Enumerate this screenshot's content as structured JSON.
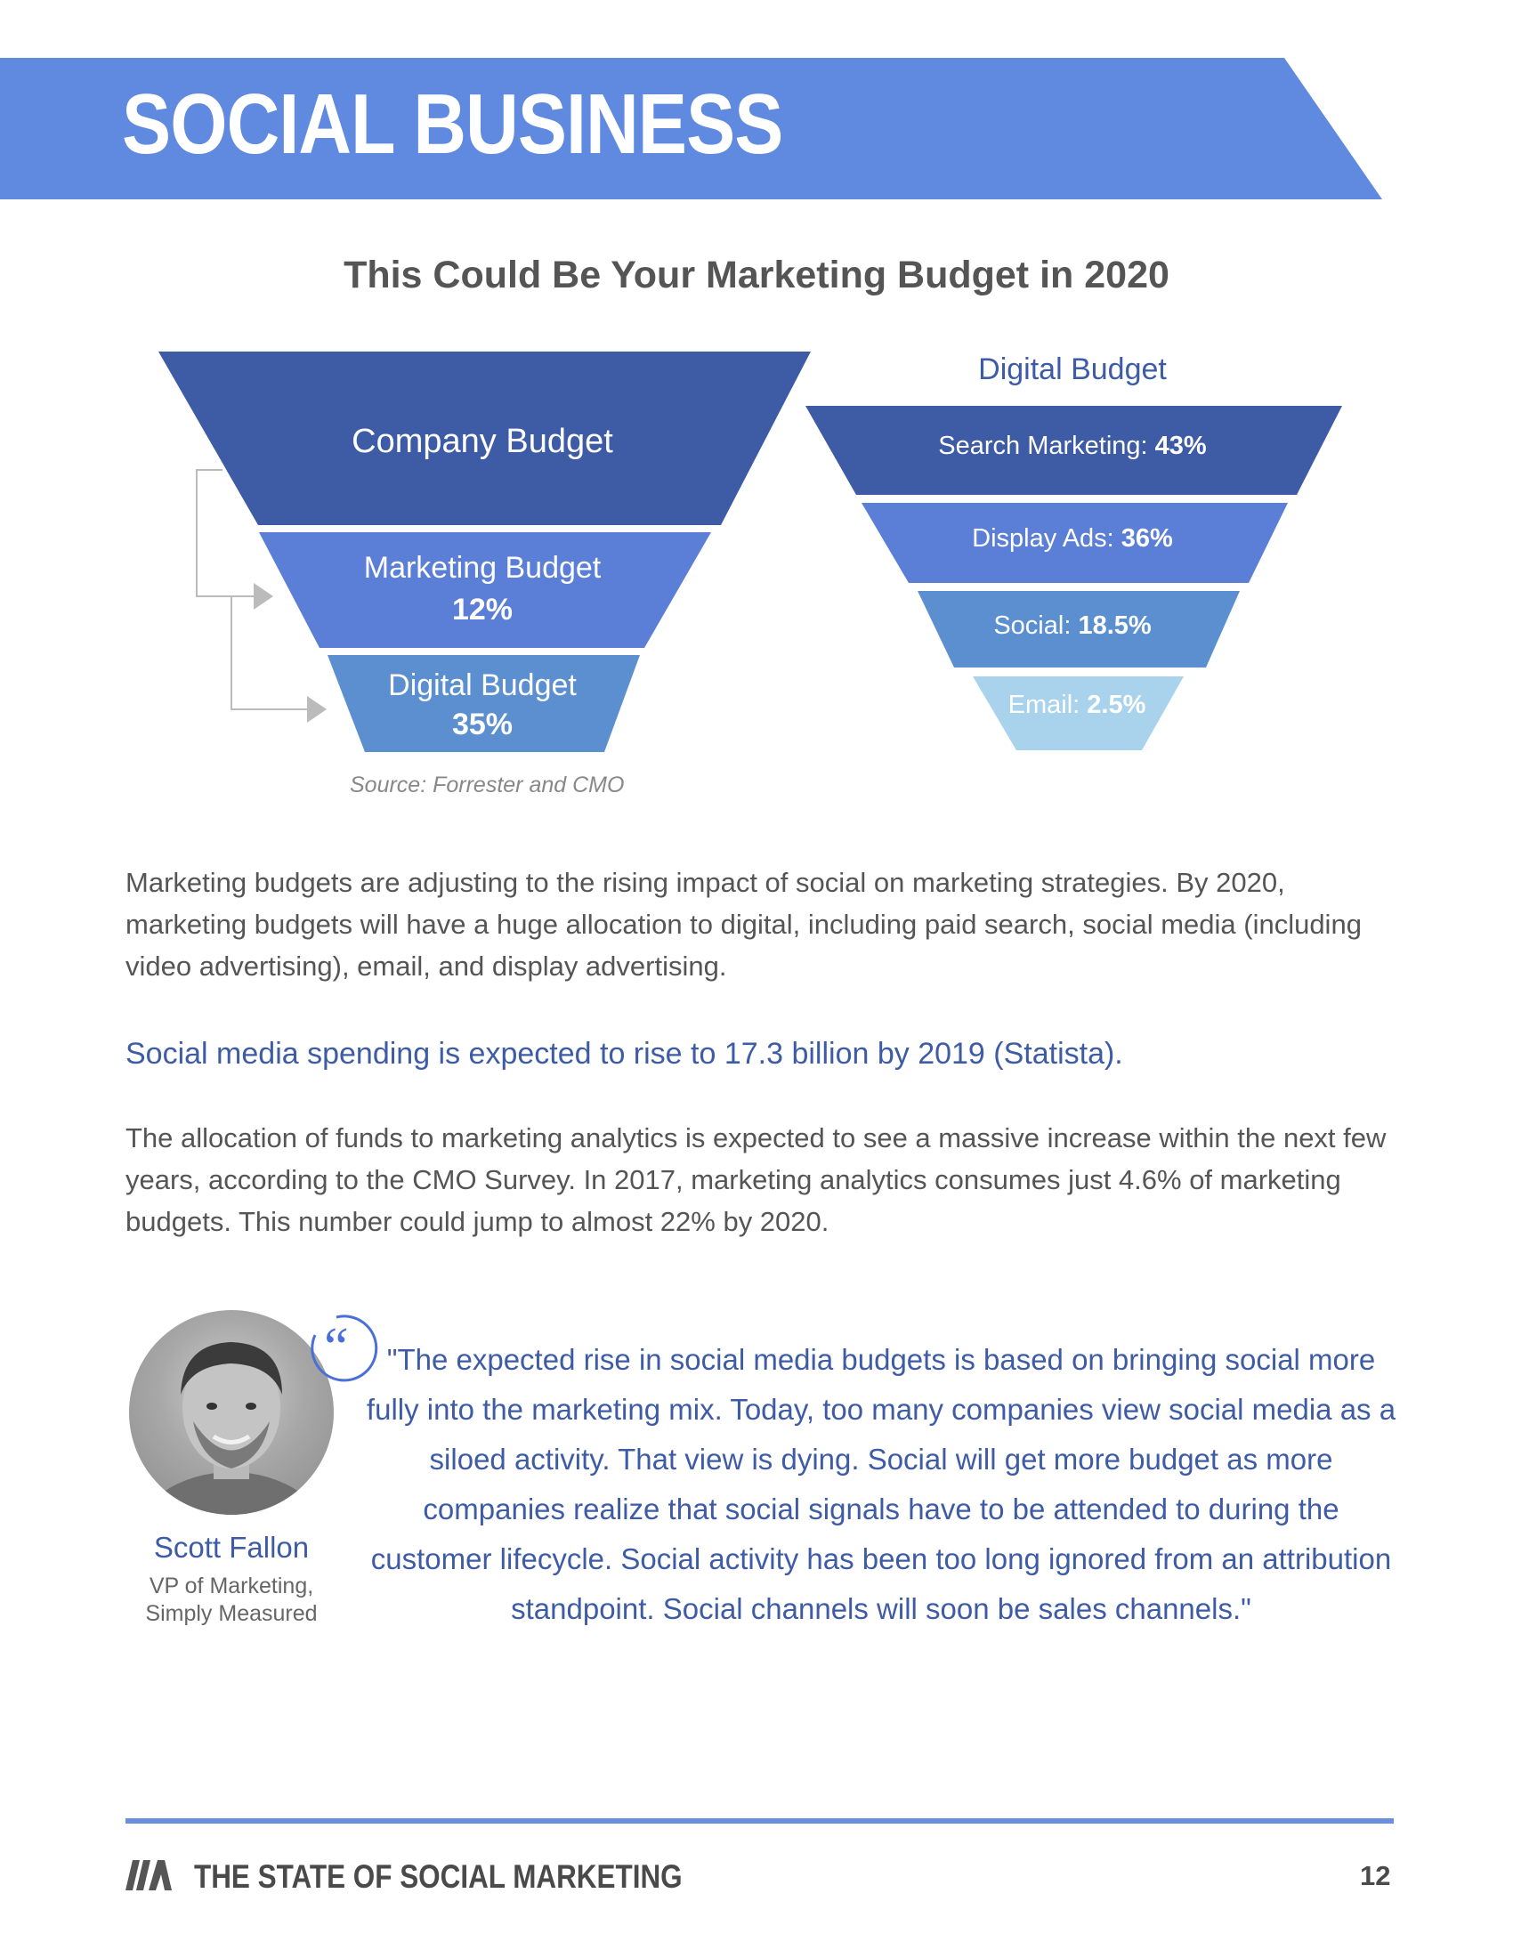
{
  "header": {
    "title": "SOCIAL BUSINESS",
    "color": "#6089e0"
  },
  "chart": {
    "title": "This Could Be Your Marketing Budget in 2020",
    "left_funnel": {
      "company_label": "Company Budget",
      "marketing_label": "Marketing Budget",
      "marketing_value": "12%",
      "digital_label": "Digital Budget",
      "digital_value": "35%"
    },
    "right_funnel": {
      "title": "Digital Budget",
      "items": [
        {
          "label": "Search Marketing:",
          "value": "43%",
          "color": "#3e5ba6"
        },
        {
          "label": "Display Ads:",
          "value": "36%",
          "color": "#5b7fd6"
        },
        {
          "label": "Social:",
          "value": "18.5%",
          "color": "#5b8fd0"
        },
        {
          "label": "Email:",
          "value": "2.5%",
          "color": "#a9d3ec"
        }
      ]
    },
    "source": "Source: Forrester and CMO"
  },
  "content": {
    "paragraph1": "Marketing budgets are adjusting to the rising impact of social on marketing strategies. By 2020, marketing budgets will have a huge allocation to digital, including paid search, social media (including video advertising), email, and display advertising.",
    "highlight": "Social media spending is expected to rise to 17.3 billion by 2019 (Statista).",
    "paragraph2": "The allocation of funds to marketing analytics is expected to see a massive increase within the next few years, according to the CMO Survey. In 2017, marketing analytics consumes just 4.6% of marketing budgets. This number could jump to almost 22% by 2020."
  },
  "testimonial": {
    "name": "Scott Fallon",
    "role_line1": "VP of Marketing,",
    "role_line2": "Simply Measured",
    "quote": "\"The expected rise in social media budgets is based on bringing social more fully into the marketing mix. Today, too many companies view social media as a siloed activity. That view is dying. Social will get more budget as more companies realize that social signals have to be attended to during the customer lifecycle. Social activity has been too long ignored from an attribution standpoint. Social channels will soon be sales channels.\""
  },
  "footer": {
    "title": "THE STATE OF SOCIAL MARKETING",
    "page_number": "12",
    "accent": "#6b8fe0"
  }
}
